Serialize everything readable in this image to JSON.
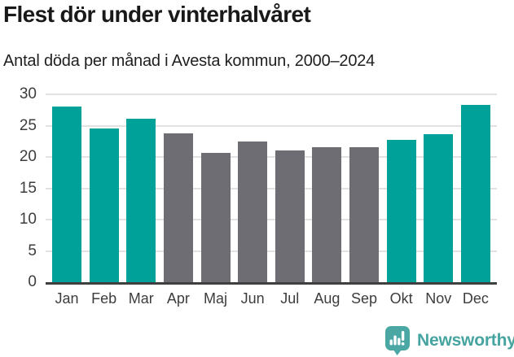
{
  "chart": {
    "title": "Flest dör under vinterhalvåret",
    "subtitle": "Antal döda per månad i Avesta kommun, 2000–2024"
  },
  "chart_data": {
    "type": "bar",
    "title": "Flest dör under vinterhalvåret",
    "subtitle": "Antal döda per månad i Avesta kommun, 2000–2024",
    "categories": [
      "Jan",
      "Feb",
      "Mar",
      "Apr",
      "Maj",
      "Jun",
      "Jul",
      "Aug",
      "Sep",
      "Okt",
      "Nov",
      "Dec"
    ],
    "values": [
      28.0,
      24.6,
      26.1,
      23.8,
      20.6,
      22.5,
      21.0,
      21.5,
      21.6,
      22.7,
      23.7,
      28.3
    ],
    "bar_colors": [
      "#00a199",
      "#00a199",
      "#00a199",
      "#6e6d73",
      "#6e6d73",
      "#6e6d73",
      "#6e6d73",
      "#6e6d73",
      "#6e6d73",
      "#00a199",
      "#00a199",
      "#00a199"
    ],
    "highlight_color": "#00a199",
    "muted_color": "#6e6d73",
    "highlighted_categories": [
      "Jan",
      "Feb",
      "Mar",
      "Okt",
      "Nov",
      "Dec"
    ],
    "xlabel": "",
    "ylabel": "",
    "ylim": [
      0,
      30
    ],
    "yticks": [
      0,
      5,
      10,
      15,
      20,
      25,
      30
    ],
    "grid": true,
    "gridline_color": "#e2e2e2",
    "axis_line_color": "#3f3f3f",
    "legend": false
  },
  "footer": {
    "brand": "Newsworthy",
    "brand_color": "#45a4a0",
    "icon": "newsworthy-speech-bubble-bar-chart-icon",
    "icon_color": "#4aa7a3"
  }
}
